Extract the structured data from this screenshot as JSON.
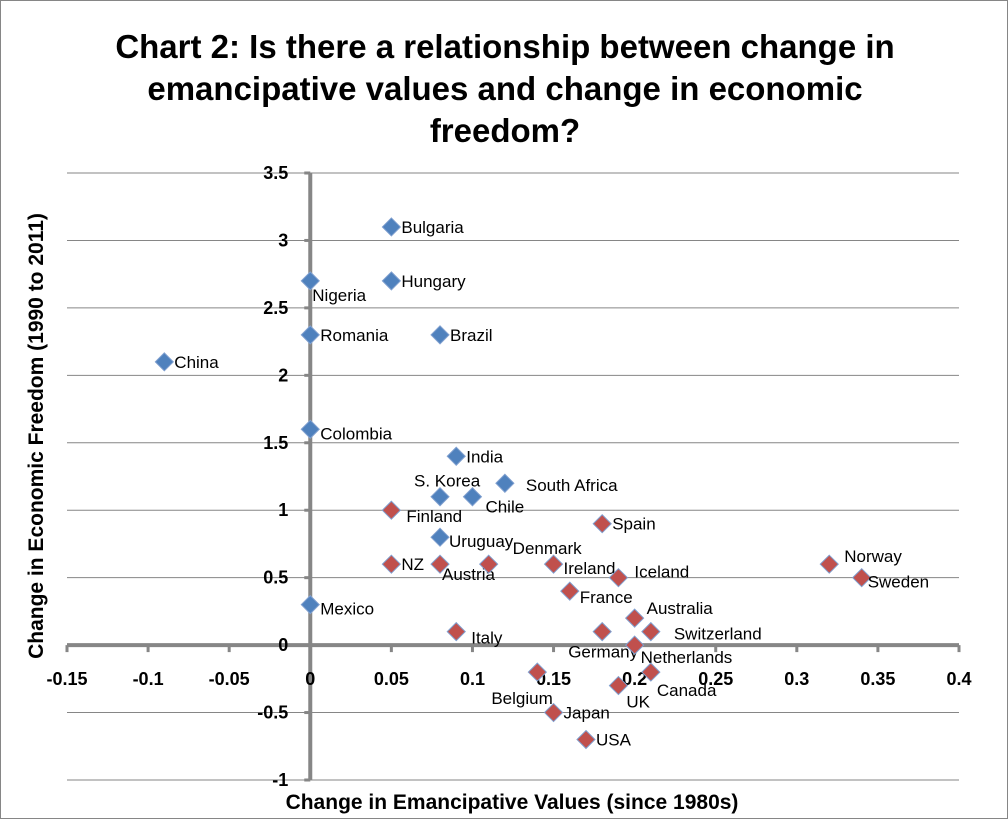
{
  "chart_data": {
    "type": "scatter",
    "title": [
      "Chart 2: Is there a relationship between change in",
      "emancipative values and change in economic",
      "freedom?"
    ],
    "xlabel": "Change in Emancipative Values (since 1980s)",
    "ylabel": "Change in Economic Freedom (1990 to 2011)",
    "xlim": [
      -0.15,
      0.4
    ],
    "ylim": [
      -1,
      3.5
    ],
    "xticks": [
      "-0.15",
      "-0.1",
      "-0.05",
      "0",
      "0.05",
      "0.1",
      "0.15",
      "0.2",
      "0.25",
      "0.3",
      "0.35",
      "0.4"
    ],
    "yticks": [
      "-1",
      "-0.5",
      "0",
      "0.5",
      "1",
      "1.5",
      "2",
      "2.5",
      "3",
      "3.5"
    ],
    "grid": "horizontal",
    "legend": "none",
    "series": [
      {
        "color": "#4F81BD",
        "points": [
          {
            "label": "Bulgaria",
            "x": 0.05,
            "y": 3.1
          },
          {
            "label": "Hungary",
            "x": 0.05,
            "y": 2.7
          },
          {
            "label": "Nigeria",
            "x": 0,
            "y": 2.7
          },
          {
            "label": "Romania",
            "x": 0,
            "y": 2.3
          },
          {
            "label": "Brazil",
            "x": 0.08,
            "y": 2.3
          },
          {
            "label": "China",
            "x": -0.09,
            "y": 2.1
          },
          {
            "label": "Colombia",
            "x": 0,
            "y": 1.6
          },
          {
            "label": "India",
            "x": 0.09,
            "y": 1.4
          },
          {
            "label": "S. Korea",
            "x": 0.08,
            "y": 1.1
          },
          {
            "label": "Chile",
            "x": 0.1,
            "y": 1.1
          },
          {
            "label": "South Africa",
            "x": 0.12,
            "y": 1.2
          },
          {
            "label": "Uruguay",
            "x": 0.08,
            "y": 0.8
          },
          {
            "label": "Mexico",
            "x": 0,
            "y": 0.3
          }
        ]
      },
      {
        "color": "#C0504D",
        "points": [
          {
            "label": "Finland",
            "x": 0.05,
            "y": 1.0
          },
          {
            "label": "NZ",
            "x": 0.05,
            "y": 0.6
          },
          {
            "label": "Austria",
            "x": 0.08,
            "y": 0.6
          },
          {
            "label": "Denmark",
            "x": 0.11,
            "y": 0.6
          },
          {
            "label": "Ireland",
            "x": 0.15,
            "y": 0.6
          },
          {
            "label": "Spain",
            "x": 0.18,
            "y": 0.9
          },
          {
            "label": "Iceland",
            "x": 0.19,
            "y": 0.5
          },
          {
            "label": "France",
            "x": 0.16,
            "y": 0.4
          },
          {
            "label": "Australia",
            "x": 0.2,
            "y": 0.2
          },
          {
            "label": "Germany",
            "x": 0.18,
            "y": 0.1
          },
          {
            "label": "Switzerland",
            "x": 0.21,
            "y": 0.1
          },
          {
            "label": "Netherlands",
            "x": 0.2,
            "y": 0.0
          },
          {
            "label": "Italy",
            "x": 0.09,
            "y": 0.1
          },
          {
            "label": "Canada",
            "x": 0.21,
            "y": -0.2
          },
          {
            "label": "Belgium",
            "x": 0.14,
            "y": -0.2
          },
          {
            "label": "UK",
            "x": 0.19,
            "y": -0.3
          },
          {
            "label": "Japan",
            "x": 0.15,
            "y": -0.5
          },
          {
            "label": "USA",
            "x": 0.17,
            "y": -0.7
          },
          {
            "label": "Norway",
            "x": 0.32,
            "y": 0.6
          },
          {
            "label": "Sweden",
            "x": 0.34,
            "y": 0.5
          }
        ]
      }
    ]
  }
}
